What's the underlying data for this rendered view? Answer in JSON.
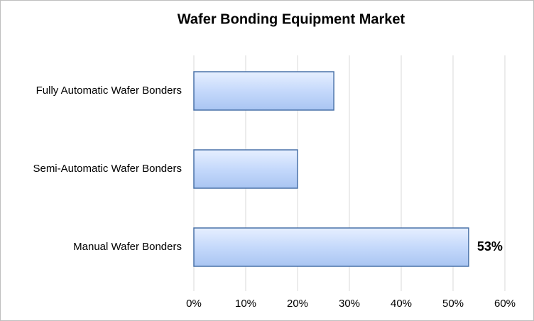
{
  "chart_data": {
    "type": "bar",
    "orientation": "horizontal",
    "title": "Wafer Bonding  Equipment  Market",
    "categories": [
      "Fully Automatic Wafer Bonders",
      "Semi-Automatic Wafer Bonders",
      "Manual Wafer Bonders"
    ],
    "values": [
      27,
      20,
      53
    ],
    "value_labels": [
      null,
      null,
      "53%"
    ],
    "color": "#c5d9fb",
    "xlim": [
      0,
      60
    ],
    "xticks": [
      {
        "value": 0,
        "label": "0%"
      },
      {
        "value": 10,
        "label": "10%"
      },
      {
        "value": 20,
        "label": "20%"
      },
      {
        "value": 30,
        "label": "30%"
      },
      {
        "value": 40,
        "label": "40%"
      },
      {
        "value": 50,
        "label": "50%"
      },
      {
        "value": 60,
        "label": "60%"
      }
    ],
    "grid": true
  }
}
